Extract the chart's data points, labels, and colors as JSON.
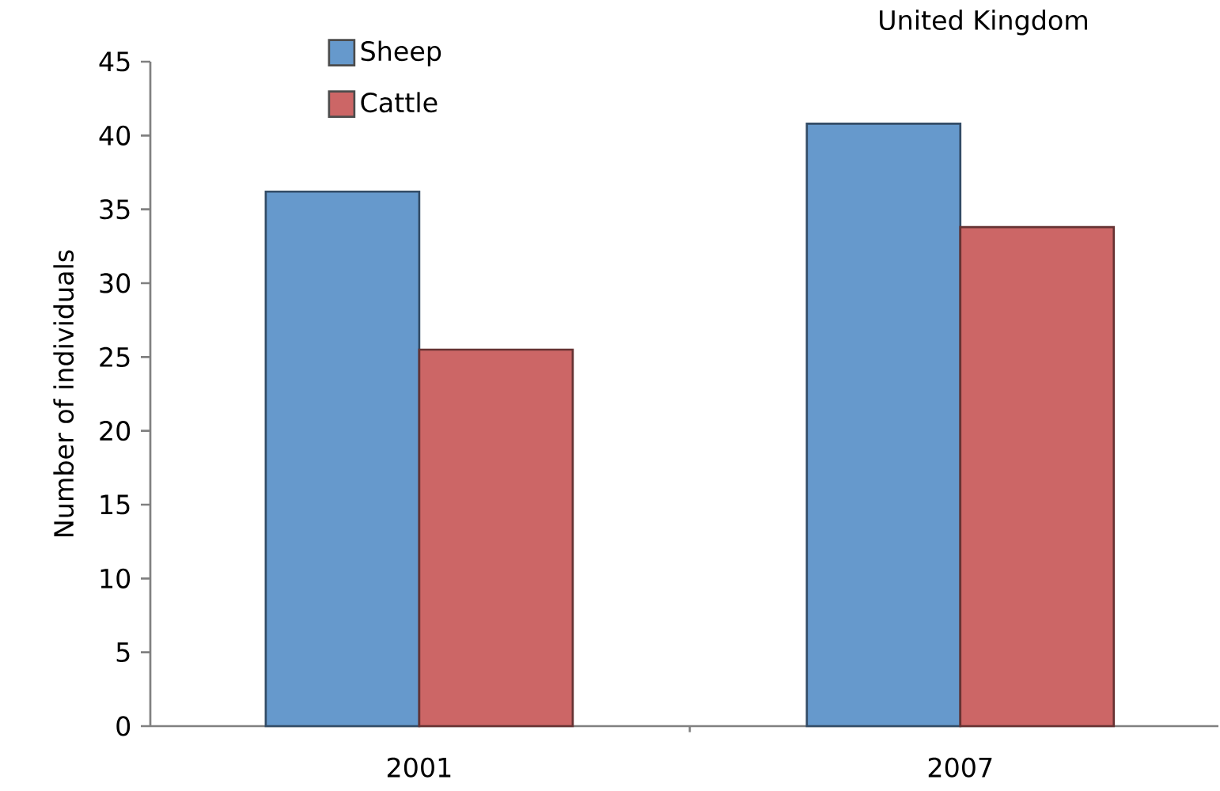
{
  "chart_data": {
    "type": "bar",
    "title": "United Kingdom",
    "ylabel": "Number of individuals",
    "categories": [
      "2001",
      "2007"
    ],
    "series": [
      {
        "name": "Sheep",
        "color": "#6699cc",
        "values": [
          36.2,
          40.8
        ]
      },
      {
        "name": "Cattle",
        "color": "#cc6666",
        "values": [
          25.5,
          33.8
        ]
      }
    ],
    "ylim": [
      0,
      45
    ],
    "yticks": [
      0,
      5,
      10,
      15,
      20,
      25,
      30,
      35,
      40,
      45
    ],
    "grid": false,
    "legend": "top left"
  }
}
